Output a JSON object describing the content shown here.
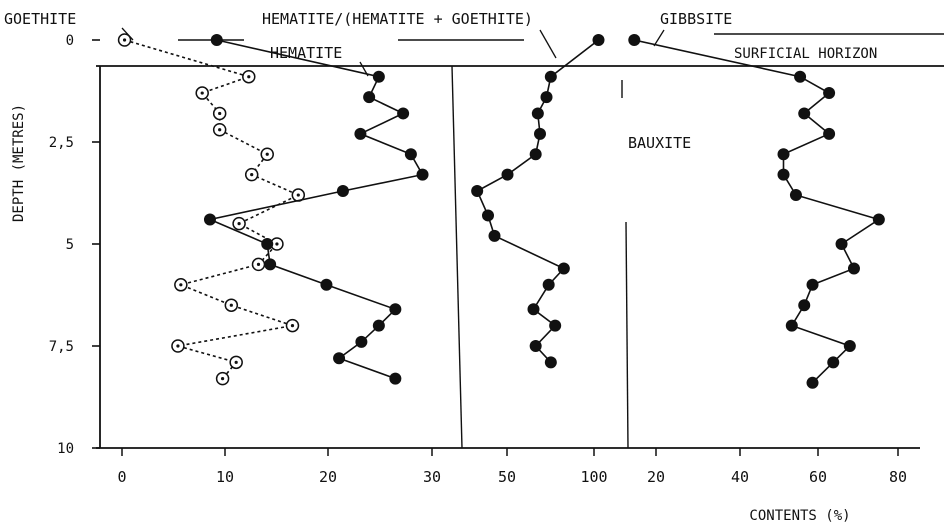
{
  "chart_data": {
    "type": "scatter",
    "y_axis": {
      "label": "DEPTH (METRES)",
      "ticks": [
        "0",
        "2,5",
        "5",
        "7,5",
        "10"
      ],
      "tick_values": [
        0,
        2.5,
        5,
        7.5,
        10
      ],
      "range": [
        0,
        10
      ],
      "inverted": true
    },
    "x_label": "CONTENTS (%)",
    "panels": [
      {
        "name": "goethite_hematite",
        "x_ticks": [
          "0",
          "10",
          "20",
          "30"
        ],
        "x_tick_values": [
          0,
          10,
          20,
          30
        ],
        "xlim": [
          -2,
          32
        ],
        "series": [
          {
            "name": "GOETHITE",
            "marker": "open-dot",
            "line": "dotted",
            "points": [
              [
                -0.5,
                0
              ],
              [
                12.3,
                0.9
              ],
              [
                7.5,
                1.3
              ],
              [
                9.3,
                1.8
              ],
              [
                9.3,
                2.2
              ],
              [
                14.2,
                2.8
              ],
              [
                12.6,
                3.3
              ],
              [
                17.4,
                3.8
              ],
              [
                11.3,
                4.5
              ],
              [
                15.2,
                5.0
              ],
              [
                13.3,
                5.5
              ],
              [
                5.3,
                6.0
              ],
              [
                10.5,
                6.5
              ],
              [
                16.8,
                7.0
              ],
              [
                5.0,
                7.5
              ],
              [
                11.0,
                7.9
              ],
              [
                9.6,
                8.3
              ]
            ]
          },
          {
            "name": "HEMATITE",
            "marker": "filled-dot",
            "line": "solid",
            "points": [
              [
                9.0,
                0
              ],
              [
                25.7,
                0.9
              ],
              [
                24.7,
                1.4
              ],
              [
                28.2,
                1.8
              ],
              [
                23.8,
                2.3
              ],
              [
                29.0,
                2.8
              ],
              [
                30.2,
                3.3
              ],
              [
                22.0,
                3.7
              ],
              [
                8.3,
                4.4
              ],
              [
                14.2,
                5.0
              ],
              [
                14.5,
                5.5
              ],
              [
                20.3,
                6.0
              ],
              [
                27.4,
                6.6
              ],
              [
                25.7,
                7.0
              ],
              [
                23.9,
                7.4
              ],
              [
                21.6,
                7.8
              ],
              [
                27.4,
                8.3
              ]
            ]
          }
        ]
      },
      {
        "name": "hematite_ratio",
        "x_ticks": [
          "50",
          "100"
        ],
        "x_tick_values": [
          50,
          100
        ],
        "xlim": [
          33,
          105
        ],
        "series": [
          {
            "name": "HEMATITE/(HEMATITE + GOETHITE)",
            "marker": "filled-dot",
            "line": "solid",
            "points": [
              [
                96.0,
                0
              ],
              [
                74.0,
                0.9
              ],
              [
                72.0,
                1.4
              ],
              [
                68.0,
                1.8
              ],
              [
                69.0,
                2.3
              ],
              [
                67.0,
                2.8
              ],
              [
                54.0,
                3.3
              ],
              [
                40.0,
                3.7
              ],
              [
                45.0,
                4.3
              ],
              [
                48.0,
                4.8
              ],
              [
                80.0,
                5.6
              ],
              [
                73.0,
                6.0
              ],
              [
                66.0,
                6.6
              ],
              [
                76.0,
                7.0
              ],
              [
                67.0,
                7.5
              ],
              [
                74.0,
                7.9
              ]
            ]
          }
        ]
      },
      {
        "name": "gibbsite",
        "x_ticks": [
          "20",
          "40",
          "60",
          "80"
        ],
        "x_tick_values": [
          20,
          40,
          60,
          80
        ],
        "xlim": [
          13,
          82
        ],
        "series": [
          {
            "name": "GIBBSITE",
            "marker": "filled-dot",
            "line": "solid",
            "points": [
              [
                15.0,
                0
              ],
              [
                55.0,
                0.9
              ],
              [
                62.0,
                1.3
              ],
              [
                56.0,
                1.8
              ],
              [
                62.0,
                2.3
              ],
              [
                51.0,
                2.8
              ],
              [
                51.0,
                3.3
              ],
              [
                54.0,
                3.8
              ],
              [
                74.0,
                4.4
              ],
              [
                65.0,
                5.0
              ],
              [
                68.0,
                5.6
              ],
              [
                58.0,
                6.0
              ],
              [
                56.0,
                6.5
              ],
              [
                53.0,
                7.0
              ],
              [
                67.0,
                7.5
              ],
              [
                63.0,
                7.9
              ],
              [
                58.0,
                8.4
              ]
            ]
          }
        ]
      }
    ],
    "annotations": [
      "SURFICIAL HORIZON",
      "BAUXITE"
    ]
  }
}
